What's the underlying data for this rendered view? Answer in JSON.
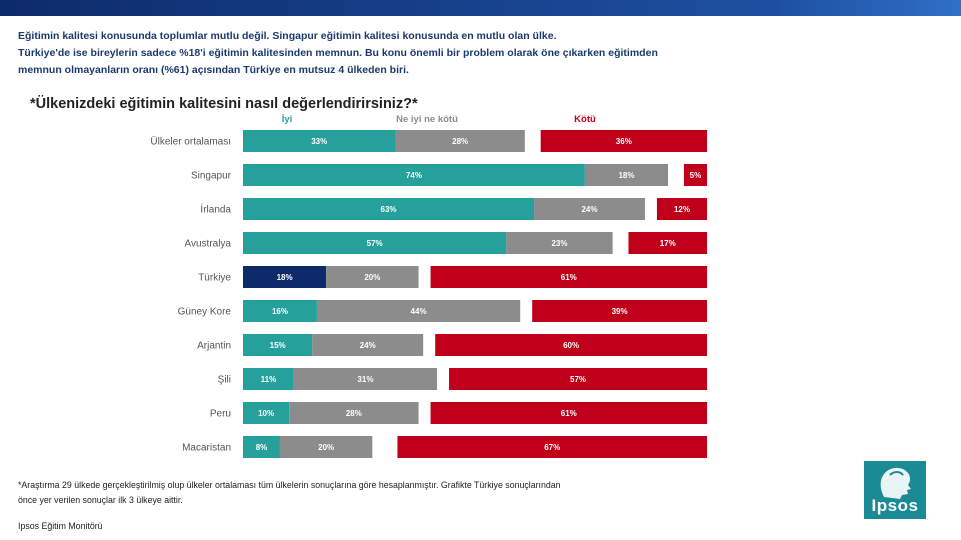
{
  "intro": {
    "line1": "Eğitimin kalitesi konusunda toplumlar mutlu değil. Singapur eğitimin kalitesi konusunda en mutlu olan ülke.",
    "line2": "Türkiye'de ise bireylerin sadece %18'i eğitimin kalitesinden memnun. Bu konu önemli bir problem olarak öne çıkarken eğitimden",
    "line3": "memnun olmayanların oranı (%61) açısından Türkiye en mutsuz 4 ülkeden biri."
  },
  "footnote": {
    "line1": "*Araştırma 29 ülkede gerçekleştirilmiş olup ülkeler ortalaması tüm ülkelerin sonuçlarına göre hesaplanmıştır. Grafikte Türkiye sonuçlarından",
    "line2": "önce yer verilen sonuçlar ilk 3 ülkeye aittir."
  },
  "source": "Ipsos Eğitim Monitörü",
  "logo": {
    "word": "Ipsos"
  },
  "colors": {
    "good": "#26a09a",
    "neutral": "#8c8c8c",
    "bad": "#c0001a",
    "highlight": "#0f2a6b",
    "brand": "#1a8a95"
  },
  "chart_data": {
    "type": "bar",
    "stacked": true,
    "orientation": "horizontal",
    "title": "*Ülkenizdeki eğitimin kalitesini nasıl değerlendirirsiniz?*",
    "categories": [
      "Ülkeler ortalaması",
      "Singapur",
      "İrlanda",
      "Avustralya",
      "Türkiye",
      "Güney Kore",
      "Arjantin",
      "Şili",
      "Peru",
      "Macaristan"
    ],
    "series": [
      {
        "name": "İyi",
        "values": [
          33,
          74,
          63,
          57,
          18,
          16,
          15,
          11,
          10,
          8
        ]
      },
      {
        "name": "Ne iyi ne kötü",
        "values": [
          28,
          18,
          24,
          23,
          20,
          44,
          24,
          31,
          28,
          20
        ]
      },
      {
        "name": "Kötü",
        "values": [
          36,
          5,
          12,
          17,
          61,
          39,
          60,
          57,
          61,
          67
        ]
      }
    ],
    "highlight_category": "Türkiye",
    "xlim": [
      0,
      100
    ],
    "grid": false,
    "legend_position": "top"
  }
}
